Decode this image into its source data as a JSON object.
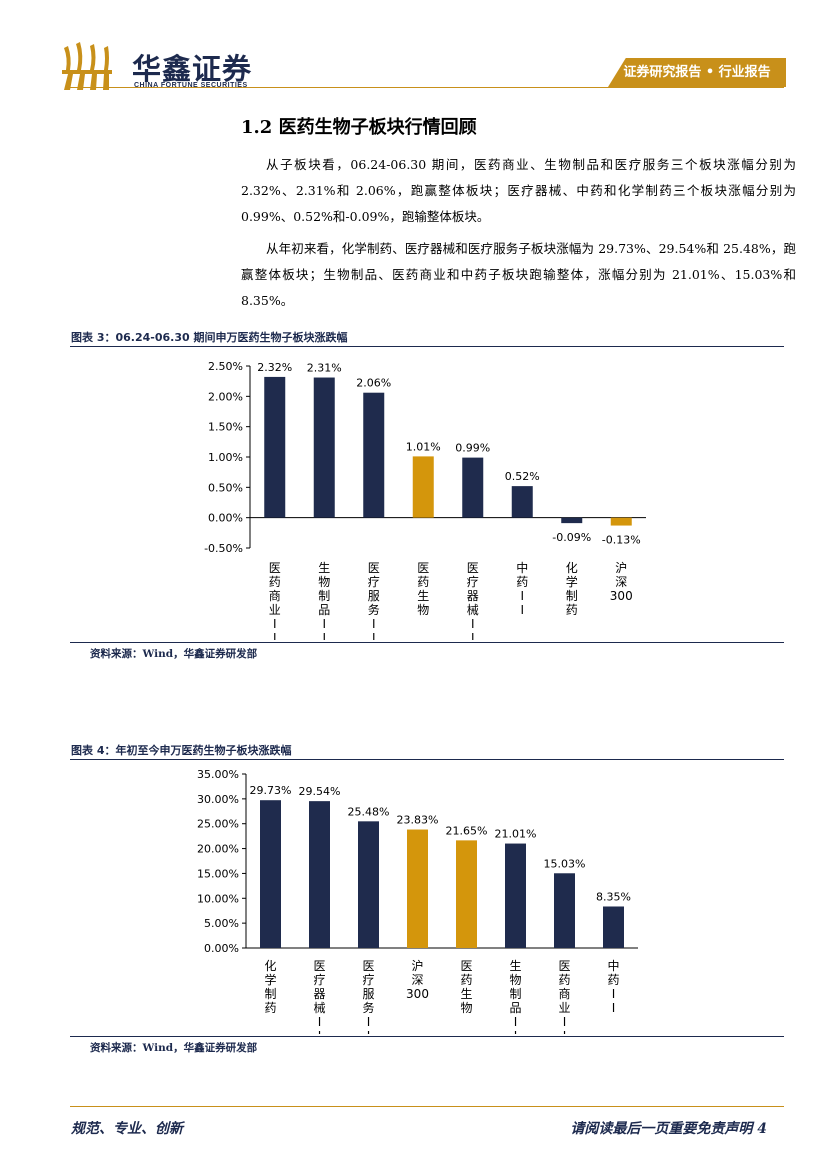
{
  "header": {
    "company_name": "华鑫证券",
    "company_name_en": "CHINA FORTUNE SECURITIES",
    "report_tag": "证券研究报告 • 行业报告"
  },
  "section": {
    "title": "1.2 医药生物子板块行情回顾",
    "paragraph1": "从子板块看，06.24-06.30 期间，医药商业、生物制品和医疗服务三个板块涨幅分别为 2.32%、2.31%和 2.06%，跑赢整体板块；医疗器械、中药和化学制药三个板块涨幅分别为 0.99%、0.52%和-0.09%，跑输整体板块。",
    "paragraph2": "从年初来看，化学制药、医疗器械和医疗服务子板块涨幅为 29.73%、29.54%和 25.48%，跑赢整体板块；生物制品、医药商业和中药子板块跑输整体，涨幅分别为 21.01%、15.03%和 8.35%。"
  },
  "figures": [
    {
      "title": "图表 3：06.24-06.30 期间申万医药生物子板块涨跌幅",
      "source": "资料来源：Wind，华鑫证券研发部"
    },
    {
      "title": "图表 4：年初至今申万医药生物子板块涨跌幅",
      "source": "资料来源：Wind，华鑫证券研发部"
    }
  ],
  "chart_data": [
    {
      "type": "bar",
      "categories": [
        "医药商业II",
        "生物制品II",
        "医疗服务II",
        "医药生物",
        "医疗器械II",
        "中药II",
        "化学制药",
        "沪深300"
      ],
      "values": [
        2.32,
        2.31,
        2.06,
        1.01,
        0.99,
        0.52,
        -0.09,
        -0.13
      ],
      "value_labels": [
        "2.32%",
        "2.31%",
        "2.06%",
        "1.01%",
        "0.99%",
        "0.52%",
        "-0.09%",
        "-0.13%"
      ],
      "highlight": [
        false,
        false,
        false,
        true,
        false,
        false,
        false,
        true
      ],
      "ylim": [
        -0.5,
        2.5
      ],
      "yticks": [
        -0.5,
        0.0,
        0.5,
        1.0,
        1.5,
        2.0,
        2.5
      ],
      "ytick_labels": [
        "-0.50%",
        "0.00%",
        "0.50%",
        "1.00%",
        "1.50%",
        "2.00%",
        "2.50%"
      ],
      "colors": {
        "base": "#1f2b4d",
        "highlight": "#d4960c"
      },
      "grid": false,
      "legend": "none"
    },
    {
      "type": "bar",
      "categories": [
        "化学制药",
        "医疗器械II",
        "医疗服务II",
        "沪深300",
        "医药生物",
        "生物制品II",
        "医药商业II",
        "中药II"
      ],
      "values": [
        29.73,
        29.54,
        25.48,
        23.83,
        21.65,
        21.01,
        15.03,
        8.35
      ],
      "value_labels": [
        "29.73%",
        "29.54%",
        "25.48%",
        "23.83%",
        "21.65%",
        "21.01%",
        "15.03%",
        "8.35%"
      ],
      "highlight": [
        false,
        false,
        false,
        true,
        true,
        false,
        false,
        false
      ],
      "ylim": [
        0,
        35
      ],
      "yticks": [
        0,
        5,
        10,
        15,
        20,
        25,
        30,
        35
      ],
      "ytick_labels": [
        "0.00%",
        "5.00%",
        "10.00%",
        "15.00%",
        "20.00%",
        "25.00%",
        "30.00%",
        "35.00%"
      ],
      "colors": {
        "base": "#1f2b4d",
        "highlight": "#d4960c"
      },
      "grid": false,
      "legend": "none"
    }
  ],
  "footer": {
    "slogan": "规范、专业、创新",
    "disclaimer": "请阅读最后一页重要免责声明 4"
  }
}
